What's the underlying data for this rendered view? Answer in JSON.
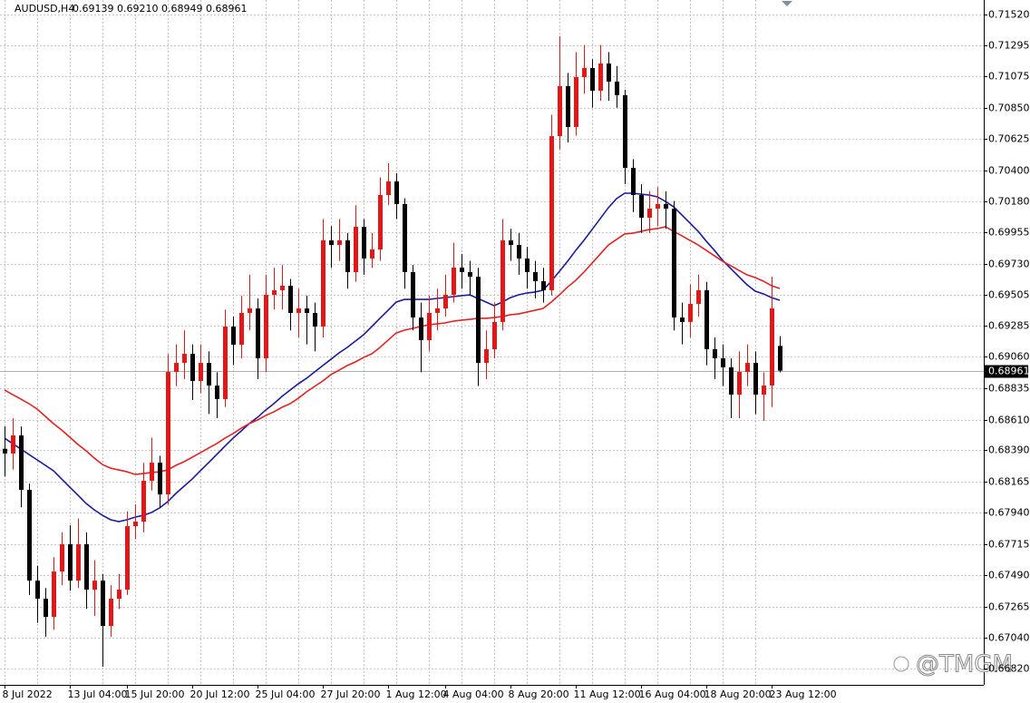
{
  "chart_data": {
    "type": "candlestick",
    "title": "AUDUSD,H4",
    "subtitle": "0.69139 0.69210 0.68949 0.68961",
    "watermark": "@TMGM",
    "categories": [
      "8 Jul 2022",
      null,
      null,
      null,
      null,
      null,
      null,
      null,
      "13 Jul 04:00",
      null,
      null,
      null,
      null,
      null,
      null,
      "15 Jul 20:00",
      null,
      null,
      null,
      null,
      null,
      null,
      null,
      "20 Jul 12:00",
      null,
      null,
      null,
      null,
      null,
      null,
      null,
      "25 Jul 04:00",
      null,
      null,
      null,
      null,
      null,
      null,
      null,
      "27 Jul 20:00",
      null,
      null,
      null,
      null,
      null,
      null,
      null,
      "1 Aug 12:00",
      null,
      null,
      null,
      null,
      null,
      null,
      "4 Aug 04:00",
      null,
      null,
      null,
      null,
      null,
      null,
      null,
      "8 Aug 20:00",
      null,
      null,
      null,
      null,
      null,
      null,
      null,
      "11 Aug 12:00",
      null,
      null,
      null,
      null,
      null,
      null,
      null,
      "16 Aug 04:00",
      null,
      null,
      null,
      null,
      null,
      null,
      null,
      "18 Aug 20:00",
      null,
      null,
      null,
      null,
      null,
      null,
      null,
      "23 Aug 12:00",
      null
    ],
    "open": [
      0.684,
      0.68366,
      0.68496,
      0.68105,
      0.67453,
      0.67323,
      0.67192,
      0.67518,
      0.67714,
      0.67453,
      0.67714,
      0.67388,
      0.67453,
      0.67127,
      0.67323,
      0.67388,
      0.67844,
      0.67877,
      0.6817,
      0.683,
      0.68072,
      0.68952,
      0.69017,
      0.69082,
      0.68887,
      0.69017,
      0.68854,
      0.68757,
      0.69278,
      0.69148,
      0.69376,
      0.69408,
      0.6905,
      0.69506,
      0.69539,
      0.69571,
      0.69376,
      0.69408,
      0.69376,
      0.69278,
      0.69897,
      0.69864,
      0.69897,
      0.69669,
      0.69995,
      0.69767,
      0.69832,
      0.70223,
      0.70321,
      0.70158,
      0.69669,
      0.69343,
      0.6918,
      0.69376,
      0.69408,
      0.69506,
      0.69702,
      0.69669,
      0.69636,
      0.69017,
      0.69115,
      0.69311,
      0.69897,
      0.69864,
      0.69767,
      0.69669,
      0.69604,
      0.69539,
      0.70646,
      0.71005,
      0.70712,
      0.7107,
      0.71135,
      0.70972,
      0.71168,
      0.71038,
      0.7094,
      0.70418,
      0.70223,
      0.7006,
      0.70125,
      0.70158,
      0.70125,
      0.69343,
      0.69311,
      0.69441,
      0.69539,
      0.69115,
      0.6905,
      0.68985,
      0.68789,
      0.68952,
      0.69017,
      0.68789,
      0.68854,
      0.69139
    ],
    "high": [
      0.6856,
      0.6862,
      0.6856,
      0.6815,
      0.6756,
      0.674,
      0.6762,
      0.678,
      0.6785,
      0.679,
      0.678,
      0.676,
      0.675,
      0.6742,
      0.675,
      0.6795,
      0.68,
      0.683,
      0.6848,
      0.6835,
      0.6908,
      0.6915,
      0.6925,
      0.6915,
      0.6915,
      0.691,
      0.6895,
      0.694,
      0.6935,
      0.695,
      0.6965,
      0.6948,
      0.6965,
      0.697,
      0.6972,
      0.6962,
      0.6955,
      0.695,
      0.6945,
      0.7005,
      0.7,
      0.7005,
      0.6995,
      0.7015,
      0.7005,
      0.6995,
      0.7035,
      0.70451,
      0.7038,
      0.702,
      0.6972,
      0.6945,
      0.695,
      0.6955,
      0.6965,
      0.6988,
      0.698,
      0.6975,
      0.697,
      0.6925,
      0.6945,
      0.7005,
      0.6998,
      0.6995,
      0.6985,
      0.6975,
      0.697,
      0.708,
      0.71363,
      0.711,
      0.7125,
      0.713,
      0.712,
      0.713,
      0.7125,
      0.7115,
      0.7098,
      0.7048,
      0.703,
      0.7025,
      0.7028,
      0.7025,
      0.7018,
      0.6945,
      0.6958,
      0.6965,
      0.696,
      0.692,
      0.6915,
      0.6905,
      0.691,
      0.6915,
      0.691,
      0.6895,
      0.69636,
      0.6921
    ],
    "low": [
      0.682,
      0.6825,
      0.6798,
      0.6735,
      0.6715,
      0.6705,
      0.671,
      0.6742,
      0.6738,
      0.674,
      0.6725,
      0.672,
      0.66834,
      0.6705,
      0.6725,
      0.6735,
      0.6775,
      0.678,
      0.681,
      0.6798,
      0.68,
      0.6885,
      0.689,
      0.6875,
      0.688,
      0.6865,
      0.6862,
      0.687,
      0.69,
      0.6905,
      0.6925,
      0.689,
      0.6895,
      0.694,
      0.694,
      0.6925,
      0.692,
      0.6915,
      0.691,
      0.692,
      0.697,
      0.6975,
      0.6955,
      0.696,
      0.6965,
      0.697,
      0.6975,
      0.7015,
      0.7005,
      0.6955,
      0.6925,
      0.6895,
      0.691,
      0.6925,
      0.6935,
      0.6945,
      0.6955,
      0.695,
      0.6885,
      0.689,
      0.6905,
      0.6925,
      0.6975,
      0.6965,
      0.6955,
      0.6948,
      0.6945,
      0.695,
      0.7055,
      0.706,
      0.7065,
      0.7095,
      0.7085,
      0.709,
      0.709,
      0.7085,
      0.703,
      0.701,
      0.6995,
      0.6995,
      0.7,
      0.6998,
      0.6925,
      0.6915,
      0.692,
      0.6935,
      0.69,
      0.689,
      0.6885,
      0.6862,
      0.6862,
      0.6885,
      0.6865,
      0.686,
      0.687,
      0.68949
    ],
    "close": [
      0.68366,
      0.68496,
      0.68105,
      0.67453,
      0.67323,
      0.67192,
      0.67518,
      0.67714,
      0.67453,
      0.67714,
      0.67388,
      0.67453,
      0.67127,
      0.67323,
      0.67388,
      0.67844,
      0.67877,
      0.6817,
      0.683,
      0.68072,
      0.68952,
      0.69017,
      0.69082,
      0.68887,
      0.69017,
      0.68854,
      0.68757,
      0.69278,
      0.69148,
      0.69376,
      0.69408,
      0.6905,
      0.69506,
      0.69539,
      0.69571,
      0.69376,
      0.69408,
      0.69376,
      0.69278,
      0.69897,
      0.69864,
      0.69897,
      0.69669,
      0.69995,
      0.69767,
      0.69832,
      0.70223,
      0.70321,
      0.70158,
      0.69669,
      0.69343,
      0.6918,
      0.69376,
      0.69408,
      0.69506,
      0.69702,
      0.69669,
      0.69636,
      0.69017,
      0.69115,
      0.69311,
      0.69897,
      0.69864,
      0.69767,
      0.69669,
      0.69604,
      0.69539,
      0.70646,
      0.71005,
      0.70712,
      0.7107,
      0.71135,
      0.70972,
      0.71168,
      0.71038,
      0.7094,
      0.70418,
      0.70223,
      0.7006,
      0.70125,
      0.70158,
      0.70125,
      0.69343,
      0.69311,
      0.69441,
      0.69539,
      0.69115,
      0.6905,
      0.68985,
      0.68789,
      0.68952,
      0.69017,
      0.68789,
      0.68854,
      0.69408,
      0.68961
    ],
    "up_color": "#e01818",
    "down_color": "#000000",
    "overlays": [
      {
        "color": "#1b1b9e",
        "values": [
          0.68476,
          0.68437,
          0.68398,
          0.68359,
          0.6832,
          0.68281,
          0.68242,
          0.68183,
          0.68124,
          0.68066,
          0.68007,
          0.67961,
          0.67922,
          0.6789,
          0.67877,
          0.6789,
          0.67909,
          0.67922,
          0.67942,
          0.67975,
          0.6802,
          0.68079,
          0.68131,
          0.68183,
          0.68242,
          0.683,
          0.68359,
          0.68418,
          0.68476,
          0.68528,
          0.68581,
          0.68626,
          0.68678,
          0.68724,
          0.68776,
          0.68822,
          0.68867,
          0.68906,
          0.68952,
          0.68998,
          0.69043,
          0.69089,
          0.69128,
          0.69174,
          0.69219,
          0.69278,
          0.69337,
          0.69395,
          0.69454,
          0.69473,
          0.69473,
          0.69473,
          0.69473,
          0.6948,
          0.69486,
          0.69493,
          0.695,
          0.69506,
          0.6948,
          0.69454,
          0.69428,
          0.69454,
          0.69486,
          0.69506,
          0.69519,
          0.69526,
          0.69539,
          0.69604,
          0.69675,
          0.69747,
          0.69825,
          0.69897,
          0.69975,
          0.70053,
          0.70132,
          0.70197,
          0.70236,
          0.70236,
          0.70229,
          0.70223,
          0.7021,
          0.70177,
          0.70138,
          0.7008,
          0.70021,
          0.69962,
          0.69891,
          0.69825,
          0.69754,
          0.69695,
          0.69636,
          0.69578,
          0.69532,
          0.69513,
          0.69486,
          0.69467
        ]
      },
      {
        "color": "#e32222",
        "values": [
          0.68822,
          0.68789,
          0.68757,
          0.68724,
          0.68685,
          0.68633,
          0.68581,
          0.68535,
          0.68483,
          0.68431,
          0.68385,
          0.68333,
          0.68287,
          0.68261,
          0.68248,
          0.68235,
          0.68216,
          0.68222,
          0.68229,
          0.68235,
          0.68248,
          0.68281,
          0.68307,
          0.68339,
          0.68372,
          0.68405,
          0.68437,
          0.68476,
          0.68509,
          0.68548,
          0.68581,
          0.68607,
          0.68639,
          0.68665,
          0.68698,
          0.68724,
          0.68763,
          0.68809,
          0.68848,
          0.68887,
          0.68933,
          0.68965,
          0.68998,
          0.69024,
          0.69056,
          0.69082,
          0.69128,
          0.6918,
          0.69232,
          0.69252,
          0.69265,
          0.69278,
          0.69291,
          0.69297,
          0.69304,
          0.69317,
          0.69324,
          0.6933,
          0.69337,
          0.69337,
          0.69343,
          0.6935,
          0.69363,
          0.69369,
          0.69382,
          0.69395,
          0.69408,
          0.69454,
          0.69506,
          0.69562,
          0.6961,
          0.69669,
          0.69734,
          0.69799,
          0.69864,
          0.69904,
          0.69943,
          0.69949,
          0.69962,
          0.69975,
          0.69982,
          0.69995,
          0.69962,
          0.6993,
          0.69897,
          0.69864,
          0.69825,
          0.69786,
          0.69747,
          0.69715,
          0.69682,
          0.69649,
          0.6963,
          0.69604,
          0.69571,
          0.69552
        ]
      }
    ],
    "ylim": [
      0.66704,
      0.71624
    ],
    "yticks": [
      {
        "value": 0.7152,
        "label": "0.71520"
      },
      {
        "value": 0.71295,
        "label": "0.71295"
      },
      {
        "value": 0.71075,
        "label": "0.71075"
      },
      {
        "value": 0.7085,
        "label": "0.70850"
      },
      {
        "value": 0.70625,
        "label": "0.70625"
      },
      {
        "value": 0.704,
        "label": "0.70400"
      },
      {
        "value": 0.7018,
        "label": "0.70180"
      },
      {
        "value": 0.69955,
        "label": "0.69955"
      },
      {
        "value": 0.6973,
        "label": "0.69730"
      },
      {
        "value": 0.69505,
        "label": "0.69505"
      },
      {
        "value": 0.69285,
        "label": "0.69285"
      },
      {
        "value": 0.6906,
        "label": "0.69060"
      },
      {
        "value": 0.68835,
        "label": "0.68835"
      },
      {
        "value": 0.6861,
        "label": "0.68610"
      },
      {
        "value": 0.6839,
        "label": "0.68390"
      },
      {
        "value": 0.68165,
        "label": "0.68165"
      },
      {
        "value": 0.6794,
        "label": "0.67940"
      },
      {
        "value": 0.67715,
        "label": "0.67715"
      },
      {
        "value": 0.6749,
        "label": "0.67490"
      },
      {
        "value": 0.67265,
        "label": "0.67265"
      },
      {
        "value": 0.6704,
        "label": "0.67040"
      },
      {
        "value": 0.6682,
        "label": "0.66820"
      }
    ],
    "grid": true
  }
}
